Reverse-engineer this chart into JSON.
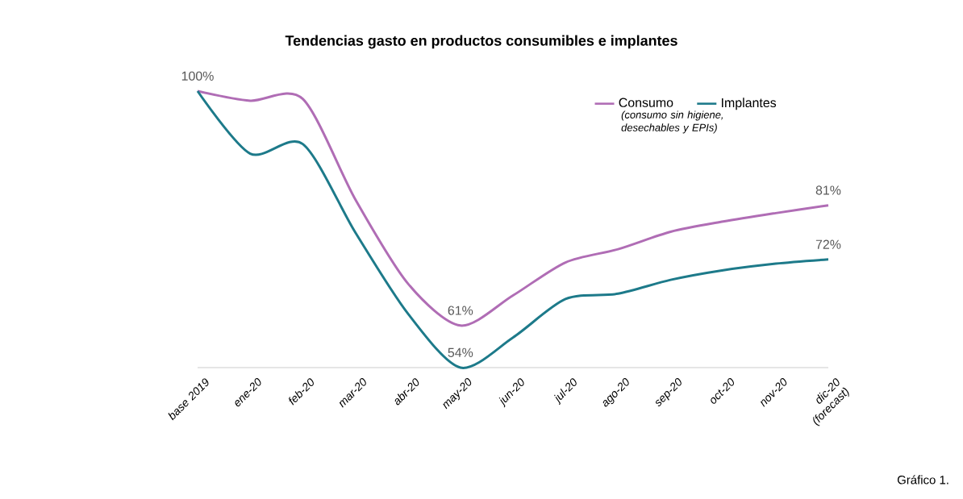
{
  "chart_data": {
    "type": "line",
    "title": "Tendencias gasto en productos consumibles e implantes",
    "categories": [
      "base 2019",
      "ene-20",
      "feb-20",
      "mar-20",
      "abr-20",
      "may-20",
      "jun-20",
      "jul-20",
      "ago-20",
      "sep-20",
      "oct-20",
      "nov-20",
      "dic-20 (forecast)"
    ],
    "series": [
      {
        "name": "Consumo",
        "color": "#b06db5",
        "values": [
          100,
          98.4,
          98.7,
          82,
          68,
          61,
          66,
          71.5,
          73.7,
          76.6,
          78.3,
          79.7,
          81
        ],
        "value_labels": [
          "100%",
          null,
          null,
          null,
          null,
          "61%",
          null,
          null,
          null,
          null,
          null,
          null,
          "81%"
        ]
      },
      {
        "name": "Implantes",
        "color": "#1d7a8a",
        "values": [
          100,
          89.6,
          91.2,
          76.5,
          63,
          54,
          59,
          65.4,
          66.3,
          68.6,
          70.2,
          71.3,
          72
        ],
        "value_labels": [
          null,
          null,
          null,
          null,
          null,
          "54%",
          null,
          null,
          null,
          null,
          null,
          null,
          "72%"
        ]
      }
    ],
    "tick_labels": "x",
    "grid": false,
    "legend": "top right",
    "marker": "none",
    "line_style": "solid",
    "annotations": [
      "(consumo sin higiene, desechables y EPIs)",
      "Gráfico 1."
    ]
  }
}
